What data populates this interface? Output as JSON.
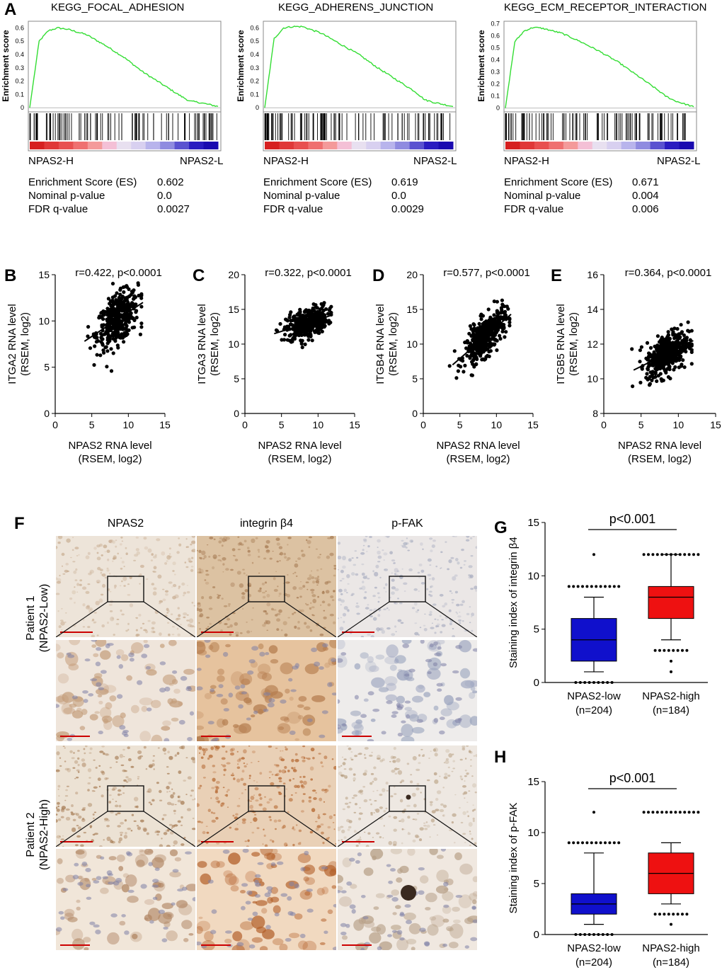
{
  "panel_labels": {
    "A": "A",
    "B": "B",
    "C": "C",
    "D": "D",
    "E": "E",
    "F": "F",
    "G": "G",
    "H": "H"
  },
  "gsea": [
    {
      "title": "KEGG_FOCAL_ADHESION",
      "ylabel": "Enrichment score",
      "es_label": "Enrichment Score (ES)",
      "es": "0.602",
      "p_label": "Nominal p-value",
      "p": "0.0",
      "fdr_label": "FDR q-value",
      "fdr": "0.0027",
      "left_label": "NPAS2-H",
      "right_label": "NPAS2-L"
    },
    {
      "title": "KEGG_ADHERENS_JUNCTION",
      "ylabel": "Enrichment score",
      "es_label": "Enrichment Score (ES)",
      "es": "0.619",
      "p_label": "Nominal p-value",
      "p": "0.0",
      "fdr_label": "FDR q-value",
      "fdr": "0.0029",
      "left_label": "NPAS2-H",
      "right_label": "NPAS2-L"
    },
    {
      "title": "KEGG_ECM_RECEPTOR_INTERACTION",
      "ylabel": "Enrichment score",
      "es_label": "Enrichment Score (ES)",
      "es": "0.671",
      "p_label": "Nominal p-value",
      "p": "0.004",
      "fdr_label": "FDR q-value",
      "fdr": "0.006",
      "left_label": "NPAS2-H",
      "right_label": "NPAS2-L"
    }
  ],
  "chart_data": [
    {
      "type": "line",
      "title": "KEGG_FOCAL_ADHESION",
      "ylabel": "Enrichment score",
      "xlabel": "",
      "ylim": [
        -0.02,
        0.65
      ],
      "yticks": [
        "0",
        "0.1",
        "0.2",
        "0.3",
        "0.4",
        "0.5",
        "0.6"
      ],
      "x": [
        0,
        0.05,
        0.1,
        0.15,
        0.2,
        0.3,
        0.4,
        0.5,
        0.6,
        0.7,
        0.8,
        0.85,
        0.9,
        1.0
      ],
      "y": [
        0,
        0.5,
        0.58,
        0.6,
        0.59,
        0.55,
        0.47,
        0.38,
        0.27,
        0.18,
        0.09,
        0.05,
        0.04,
        0.01
      ],
      "line_color": "#33dd33"
    },
    {
      "type": "line",
      "title": "KEGG_ADHERENS_JUNCTION",
      "ylabel": "Enrichment score",
      "xlabel": "",
      "ylim": [
        -0.02,
        0.65
      ],
      "yticks": [
        "0",
        "0.1",
        "0.2",
        "0.3",
        "0.4",
        "0.5",
        "0.6"
      ],
      "x": [
        0,
        0.05,
        0.1,
        0.15,
        0.2,
        0.3,
        0.4,
        0.5,
        0.6,
        0.7,
        0.8,
        0.85,
        0.9,
        1.0
      ],
      "y": [
        0,
        0.52,
        0.6,
        0.61,
        0.61,
        0.56,
        0.48,
        0.4,
        0.3,
        0.21,
        0.12,
        0.06,
        0.04,
        0.01
      ],
      "line_color": "#33dd33"
    },
    {
      "type": "line",
      "title": "KEGG_ECM_RECEPTOR_INTERACTION",
      "ylabel": "Enrichment score",
      "xlabel": "",
      "ylim": [
        -0.02,
        0.72
      ],
      "yticks": [
        "0",
        "0.1",
        "0.2",
        "0.3",
        "0.4",
        "0.5",
        "0.6",
        "0.7"
      ],
      "x": [
        0,
        0.05,
        0.1,
        0.15,
        0.2,
        0.3,
        0.4,
        0.5,
        0.6,
        0.7,
        0.8,
        0.85,
        0.9,
        1.0
      ],
      "y": [
        0,
        0.55,
        0.64,
        0.67,
        0.66,
        0.62,
        0.55,
        0.47,
        0.38,
        0.27,
        0.16,
        0.1,
        0.06,
        0.01
      ],
      "line_color": "#33dd33"
    },
    {
      "type": "scatter",
      "annotation": "r=0.422, p<0.0001",
      "ylabel": "ITGA2 RNA level\n(RSEM, log2)",
      "xlabel": "NPAS2 RNA level\n(RSEM, log2)",
      "xlim": [
        0,
        15
      ],
      "ylim": [
        0,
        15
      ],
      "xticks": [
        0,
        5,
        10,
        15
      ],
      "yticks": [
        0,
        5,
        10,
        15
      ],
      "fit": {
        "x": [
          4,
          12
        ],
        "y": [
          7.8,
          12.0
        ]
      },
      "cloud": {
        "xmean": 8.5,
        "xsd": 1.4,
        "ymean": 10.5,
        "ysd": 1.6
      }
    },
    {
      "type": "scatter",
      "annotation": "r=0.322, p<0.0001",
      "ylabel": "ITGA3 RNA level\n(RSEM, log2)",
      "xlabel": "NPAS2 RNA level\n(RSEM, log2)",
      "xlim": [
        0,
        15
      ],
      "ylim": [
        0,
        20
      ],
      "xticks": [
        0,
        5,
        10,
        15
      ],
      "yticks": [
        0,
        5,
        10,
        15,
        20
      ],
      "fit": {
        "x": [
          4,
          12
        ],
        "y": [
          11.5,
          14.2
        ]
      },
      "cloud": {
        "xmean": 8.5,
        "xsd": 1.4,
        "ymean": 12.8,
        "ysd": 1.3
      }
    },
    {
      "type": "scatter",
      "annotation": "r=0.577, p<0.0001",
      "ylabel": "ITGB4 RNA level\n(RSEM, log2)",
      "xlabel": "NPAS2 RNA level\n(RSEM, log2)",
      "xlim": [
        0,
        15
      ],
      "ylim": [
        0,
        20
      ],
      "xticks": [
        0,
        5,
        10,
        15
      ],
      "yticks": [
        0,
        5,
        10,
        15,
        20
      ],
      "fit": {
        "x": [
          4,
          12
        ],
        "y": [
          7.0,
          14.3
        ]
      },
      "cloud": {
        "xmean": 8.5,
        "xsd": 1.4,
        "ymean": 11.8,
        "ysd": 1.7
      }
    },
    {
      "type": "scatter",
      "annotation": "r=0.364, p<0.0001",
      "ylabel": "ITGB5 RNA level\n(RSEM, log2)",
      "xlabel": "NPAS2 RNA level\n(RSEM, log2)",
      "xlim": [
        0,
        15
      ],
      "ylim": [
        8,
        16
      ],
      "xticks": [
        0,
        5,
        10,
        15
      ],
      "yticks": [
        8,
        10,
        12,
        14,
        16
      ],
      "fit": {
        "x": [
          4,
          12
        ],
        "y": [
          10.5,
          12.2
        ]
      },
      "cloud": {
        "xmean": 8.5,
        "xsd": 1.4,
        "ymean": 11.5,
        "ysd": 0.75
      }
    },
    {
      "type": "box",
      "annotation": "p<0.001",
      "ylabel": "Staining index of integrin β4",
      "ylim": [
        0,
        15
      ],
      "yticks": [
        0,
        5,
        10,
        15
      ],
      "categories": [
        "NPAS2-low\n(n=204)",
        "NPAS2-high\n(n=184)"
      ],
      "boxes": [
        {
          "name": "NPAS2-low",
          "n": "(n=204)",
          "color": "#1010cc",
          "min": 1,
          "q1": 2,
          "median": 4,
          "q3": 6,
          "max": 8,
          "outliers_high": [
            9,
            9,
            12
          ],
          "outliers_low": [
            0,
            0
          ]
        },
        {
          "name": "NPAS2-high",
          "n": "(n=184)",
          "color": "#ee1111",
          "min": 4,
          "q1": 6,
          "median": 8,
          "q3": 9,
          "max": 12,
          "outliers_high": [
            12,
            12
          ],
          "outliers_low": [
            3,
            3,
            2,
            1
          ]
        }
      ]
    },
    {
      "type": "box",
      "annotation": "p<0.001",
      "ylabel": "Staining index of p-FAK",
      "ylim": [
        0,
        15
      ],
      "yticks": [
        0,
        5,
        10,
        15
      ],
      "categories": [
        "NPAS2-low\n(n=204)",
        "NPAS2-high\n(n=184)"
      ],
      "boxes": [
        {
          "name": "NPAS2-low",
          "n": "(n=204)",
          "color": "#1010cc",
          "min": 1,
          "q1": 2,
          "median": 3,
          "q3": 4,
          "max": 8,
          "outliers_high": [
            9,
            9,
            12
          ],
          "outliers_low": [
            0,
            0
          ]
        },
        {
          "name": "NPAS2-high",
          "n": "(n=184)",
          "color": "#ee1111",
          "min": 3,
          "q1": 4,
          "median": 6,
          "q3": 8,
          "max": 9,
          "outliers_high": [
            12,
            12
          ],
          "outliers_low": [
            2,
            2,
            1
          ]
        }
      ]
    }
  ],
  "ihc": {
    "columns": [
      "NPAS2",
      "integrin β4",
      "p-FAK"
    ],
    "rows": [
      "Patient 1\n(NPAS2-Low)",
      "Patient 2\n(NPAS2-High)"
    ],
    "row1_line1": "Patient 1",
    "row1_line2": "(NPAS2-Low)",
    "row2_line1": "Patient 2",
    "row2_line2": "(NPAS2-High)"
  },
  "colors": {
    "gsea_line": "#33dd33",
    "low_box": "#1010cc",
    "high_box": "#ee1111",
    "scale_bar": "#cc0000"
  }
}
